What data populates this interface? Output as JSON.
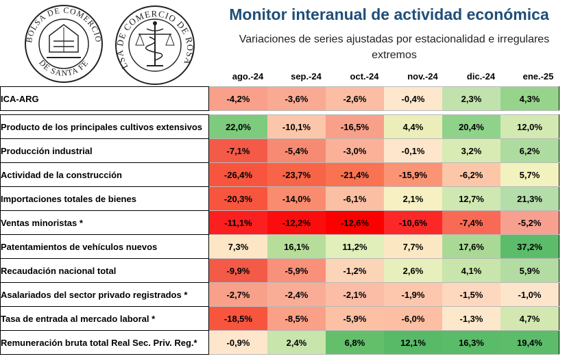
{
  "header": {
    "title": "Monitor interanual de actividad económica",
    "subtitle": "Variaciones de series ajustadas por estacionalidad e irregulares extremos"
  },
  "logos": {
    "santafe_text_top": "BOLSA DE COMERCIO",
    "santafe_text_bottom": "DE SANTA FE",
    "rosario_text": "BOLSA DE COMERCIO DE ROSARIO"
  },
  "columns": [
    "ago.-24",
    "sep.-24",
    "oct.-24",
    "nov.-24",
    "dic.-24",
    "ene.-25"
  ],
  "rows": [
    {
      "label": "ICA-ARG",
      "values": [
        "-4,2%",
        "-3,6%",
        "-2,6%",
        "-0,4%",
        "2,3%",
        "4,3%"
      ],
      "colors": [
        "#f8a08a",
        "#f9aa93",
        "#fbbda3",
        "#fde7cd",
        "#c1e2ad",
        "#97d48b"
      ]
    },
    {
      "label": "Producto de los principales cultivos extensivos",
      "values": [
        "22,0%",
        "-10,1%",
        "-16,5%",
        "4,4%",
        "20,4%",
        "12,0%"
      ],
      "colors": [
        "#7dcb7c",
        "#fcc6ab",
        "#f8a08a",
        "#eceeb9",
        "#8fd28a",
        "#d3e9b2"
      ]
    },
    {
      "label": "Producción industrial",
      "values": [
        "-7,1%",
        "-5,4%",
        "-3,0%",
        "-0,1%",
        "3,2%",
        "6,2%"
      ],
      "colors": [
        "#f45a48",
        "#f68a72",
        "#fab198",
        "#fde6cb",
        "#d8ebb4",
        "#aedb9f"
      ]
    },
    {
      "label": "Actividad de la construcción",
      "values": [
        "-26,4%",
        "-23,7%",
        "-21,4%",
        "-15,9%",
        "-6,2%",
        "5,7%"
      ],
      "colors": [
        "#f8553e",
        "#f86447",
        "#f97252",
        "#fa9474",
        "#fcc7a8",
        "#f1f2bd"
      ]
    },
    {
      "label": "Importaciones totales de bienes",
      "values": [
        "-20,3%",
        "-14,0%",
        "-6,1%",
        "2,1%",
        "12,7%",
        "21,3%"
      ],
      "colors": [
        "#f8553e",
        "#f98b6e",
        "#fbc0a3",
        "#f6f0c2",
        "#cfe8b1",
        "#b4ddaa"
      ]
    },
    {
      "label": "Ventas minoristas *",
      "values": [
        "-11,1%",
        "-12,2%",
        "-12,6%",
        "-10,6%",
        "-7,4%",
        "-5,2%"
      ],
      "colors": [
        "#fc1f1f",
        "#fc0d0d",
        "#fc0000",
        "#fc2828",
        "#f86a55",
        "#f8a090"
      ]
    },
    {
      "label": "Patentamientos de vehículos nuevos",
      "values": [
        "7,3%",
        "16,1%",
        "11,2%",
        "7,7%",
        "17,6%",
        "37,2%"
      ],
      "colors": [
        "#fde6c6",
        "#b6de9a",
        "#e1efbb",
        "#fbe8c3",
        "#a9d994",
        "#5cbc6a"
      ]
    },
    {
      "label": "Recaudación nacional total",
      "values": [
        "-9,9%",
        "-5,9%",
        "-1,2%",
        "2,6%",
        "4,1%",
        "5,9%"
      ],
      "colors": [
        "#f45a48",
        "#f8907a",
        "#fcd4b7",
        "#e7efbc",
        "#c8e5ac",
        "#b2dca2"
      ]
    },
    {
      "label": "Asalariados del sector privado registrados *",
      "values": [
        "-2,7%",
        "-2,4%",
        "-2,1%",
        "-1,9%",
        "-1,5%",
        "-1,0%"
      ],
      "colors": [
        "#f8a08a",
        "#f9ad97",
        "#fbbda5",
        "#fcc7ad",
        "#fdd7be",
        "#fde5cc"
      ]
    },
    {
      "label": "Tasa de entrada al mercado laboral *",
      "values": [
        "-18,5%",
        "-8,5%",
        "-5,9%",
        "-6,0%",
        "-1,3%",
        "4,7%"
      ],
      "colors": [
        "#f8553e",
        "#faa086",
        "#fcc1a5",
        "#fcbfa3",
        "#fde8cc",
        "#d2e8b0"
      ]
    },
    {
      "label": "Remuneración bruta total Real Sec. Priv. Reg.*",
      "values": [
        "-0,9%",
        "2,4%",
        "6,8%",
        "12,1%",
        "16,3%",
        "19,4%"
      ],
      "colors": [
        "#fde6cc",
        "#c8e5ac",
        "#64bf6b",
        "#58ba67",
        "#5abb68",
        "#5cbc6a"
      ]
    }
  ]
}
